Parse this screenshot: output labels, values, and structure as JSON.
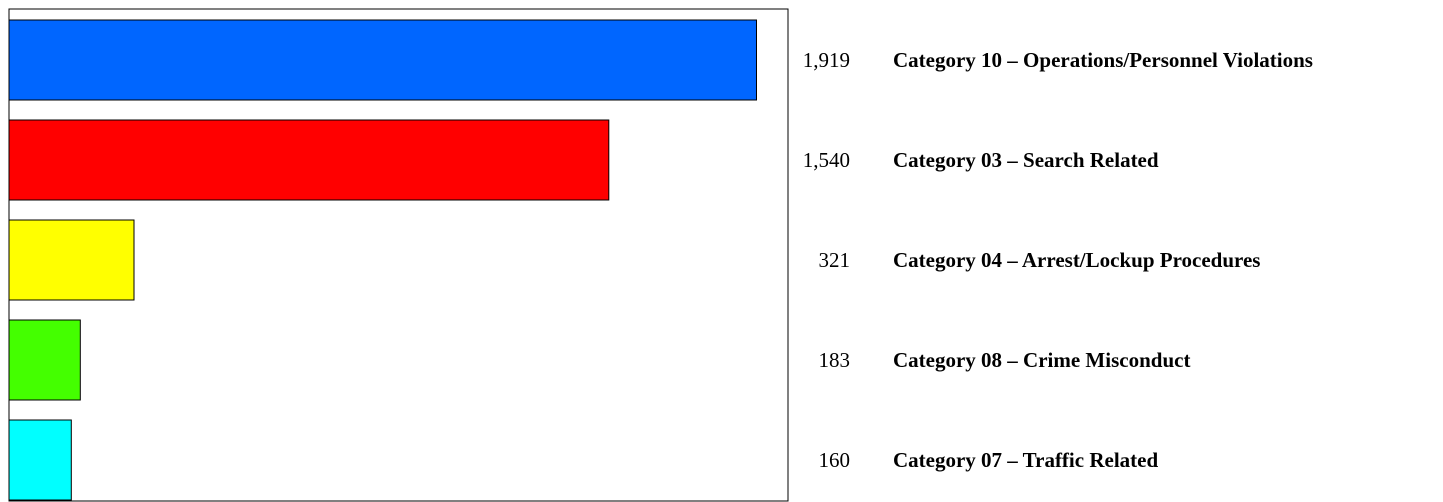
{
  "chart_data": {
    "type": "bar",
    "orientation": "horizontal",
    "categories": [
      "Category 10 – Operations/Personnel Violations",
      "Category 03 – Search Related",
      "Category 04 – Arrest/Lockup Procedures",
      "Category 08 – Crime Misconduct",
      "Category 07 – Traffic Related"
    ],
    "values": [
      1919,
      1540,
      321,
      183,
      160
    ],
    "value_labels": [
      "1,919",
      "1,540",
      "321",
      "183",
      "160"
    ],
    "colors": [
      "#0066ff",
      "#ff0000",
      "#ffff00",
      "#44ff00",
      "#00ffff"
    ],
    "xlim": [
      0,
      2000
    ],
    "grid": false,
    "legend": "none",
    "title": "",
    "xlabel": "",
    "ylabel": ""
  }
}
